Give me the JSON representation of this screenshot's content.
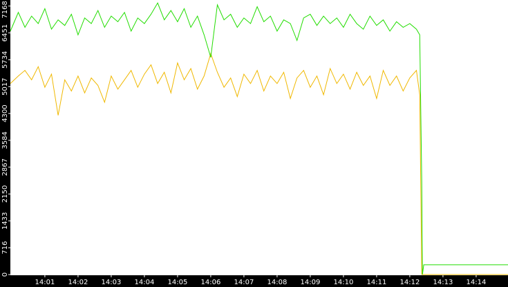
{
  "chart_data": {
    "type": "line",
    "x": [
      -0.04,
      0.2,
      0.4,
      0.6,
      0.8,
      1.0,
      1.2,
      1.4,
      1.6,
      1.8,
      2.0,
      2.2,
      2.4,
      2.6,
      2.8,
      3.0,
      3.2,
      3.4,
      3.6,
      3.8,
      4.0,
      4.2,
      4.4,
      4.6,
      4.8,
      5.0,
      5.2,
      5.4,
      5.6,
      5.8,
      6.0,
      6.2,
      6.4,
      6.6,
      6.8,
      7.0,
      7.2,
      7.4,
      7.6,
      7.8,
      8.0,
      8.2,
      8.4,
      8.6,
      8.8,
      9.0,
      9.2,
      9.4,
      9.6,
      9.8,
      10.0,
      10.2,
      10.4,
      10.6,
      10.8,
      11.0,
      11.2,
      11.4,
      11.6,
      11.8,
      12.0,
      12.2,
      12.3,
      12.36,
      12.38,
      12.42,
      14.96
    ],
    "series": [
      {
        "color": "#f0b800",
        "values": [
          5100,
          5300,
          5450,
          5200,
          5550,
          5000,
          5350,
          4250,
          5200,
          4900,
          5300,
          4850,
          5250,
          5050,
          4600,
          5300,
          4950,
          5200,
          5450,
          5000,
          5350,
          5600,
          5100,
          5400,
          4850,
          5650,
          5200,
          5500,
          4950,
          5300,
          5900,
          5400,
          5000,
          5250,
          4750,
          5350,
          5100,
          5450,
          4900,
          5300,
          5100,
          5400,
          4700,
          5250,
          5450,
          5000,
          5300,
          4800,
          5500,
          5100,
          5350,
          4950,
          5400,
          5050,
          5300,
          4700,
          5450,
          5050,
          5300,
          4900,
          5250,
          5450,
          4800,
          0,
          0,
          0,
          0
        ]
      },
      {
        "color": "#22dd00",
        "values": [
          6500,
          7000,
          6600,
          6900,
          6700,
          7100,
          6550,
          6800,
          6650,
          6950,
          6400,
          6850,
          6700,
          7050,
          6600,
          6900,
          6750,
          7000,
          6500,
          6850,
          6700,
          6950,
          7250,
          6800,
          7050,
          6750,
          7100,
          6600,
          6900,
          6400,
          5800,
          7200,
          6800,
          6950,
          6600,
          6850,
          6700,
          7150,
          6750,
          6900,
          6500,
          6800,
          6700,
          6250,
          6850,
          6950,
          6650,
          6900,
          6700,
          6850,
          6600,
          6950,
          6700,
          6550,
          6900,
          6650,
          6800,
          6500,
          6750,
          6600,
          6700,
          6550,
          6400,
          2500,
          0,
          260,
          260
        ]
      }
    ],
    "xlim": [
      -0.04,
      14.96
    ],
    "xticks": [
      {
        "value": 1,
        "label": "14:01"
      },
      {
        "value": 2,
        "label": "14:02"
      },
      {
        "value": 3,
        "label": "14:03"
      },
      {
        "value": 4,
        "label": "14:04"
      },
      {
        "value": 5,
        "label": "14:05"
      },
      {
        "value": 6,
        "label": "14:06"
      },
      {
        "value": 7,
        "label": "14:07"
      },
      {
        "value": 8,
        "label": "14:08"
      },
      {
        "value": 9,
        "label": "14:09"
      },
      {
        "value": 10,
        "label": "14:10"
      },
      {
        "value": 11,
        "label": "14:11"
      },
      {
        "value": 12,
        "label": "14:12"
      },
      {
        "value": 13,
        "label": "14:13"
      },
      {
        "value": 14,
        "label": "14:14"
      }
    ],
    "ylim": [
      0,
      7330
    ],
    "yticks": [
      0,
      716,
      1433,
      2150,
      2867,
      3584,
      4300,
      5017,
      5734,
      6451,
      7168
    ]
  }
}
